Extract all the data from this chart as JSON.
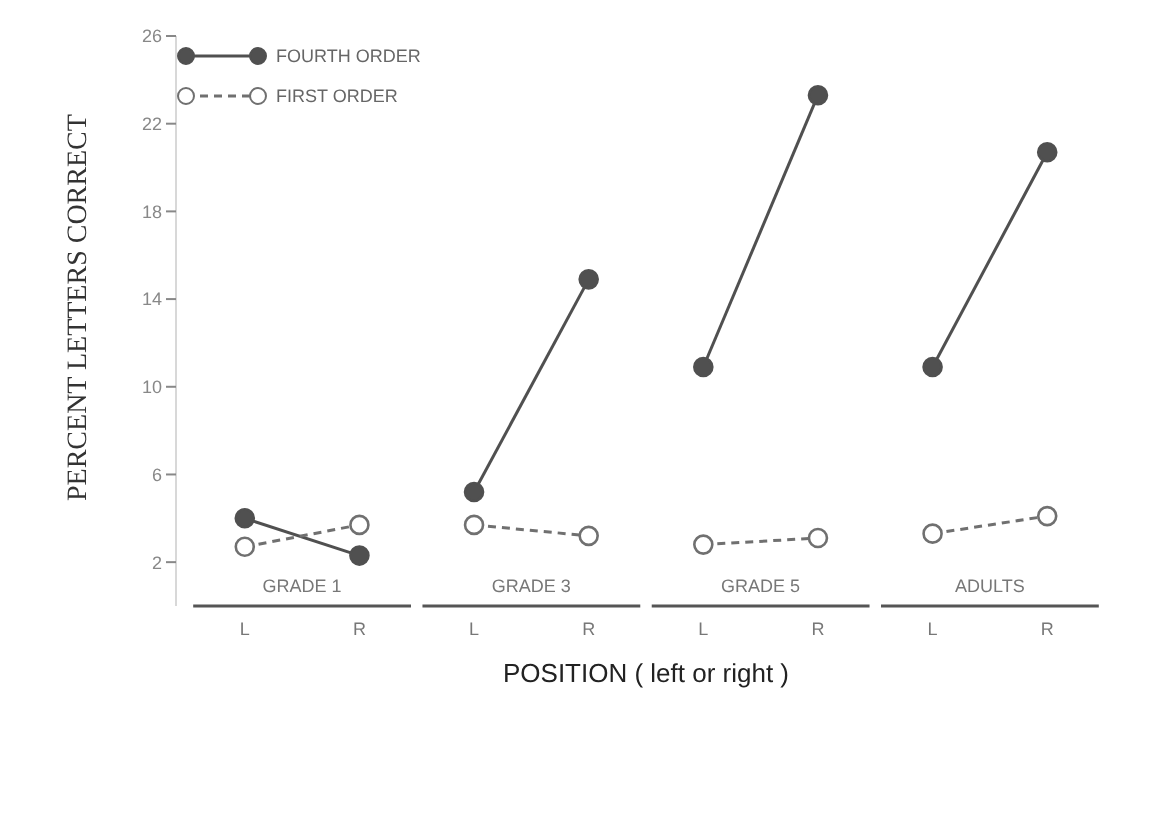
{
  "chart_data": {
    "type": "line",
    "xlabel": "POSITION  ( left or right )",
    "ylabel": "PERCENT LETTERS CORRECT",
    "categories": [
      "L",
      "R",
      "L",
      "R",
      "L",
      "R",
      "L",
      "R"
    ],
    "series": [
      {
        "name": "FOURTH ORDER",
        "color": "#505050",
        "values": [
          4,
          2.3,
          5.2,
          14.9,
          10.9,
          23.3,
          10.9,
          20.7
        ],
        "line_style": "solid"
      },
      {
        "name": "FIRST ORDER",
        "color": "#707070",
        "values": [
          2.7,
          3.7,
          3.7,
          3.2,
          2.8,
          3.1,
          3.3,
          4.1
        ],
        "line_style": "dashed"
      }
    ],
    "annotations": [
      "GRADE 1",
      "GRADE 3",
      "GRADE 5",
      "ADULTS"
    ],
    "ylim": [
      0,
      26
    ],
    "yticks": [
      2,
      6,
      10,
      14,
      18,
      22,
      26
    ],
    "marker": "circle",
    "legend": "top left",
    "grid": false
  }
}
